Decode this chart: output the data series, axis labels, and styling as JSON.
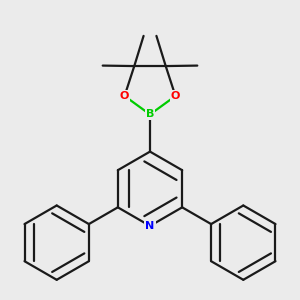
{
  "background_color": "#ebebeb",
  "bond_color": "#1a1a1a",
  "atom_colors": {
    "N": "#0000ff",
    "O": "#ff0000",
    "B": "#00cc00",
    "C": "#1a1a1a"
  },
  "line_width": 1.6,
  "figsize": [
    3.0,
    3.0
  ],
  "dpi": 100
}
